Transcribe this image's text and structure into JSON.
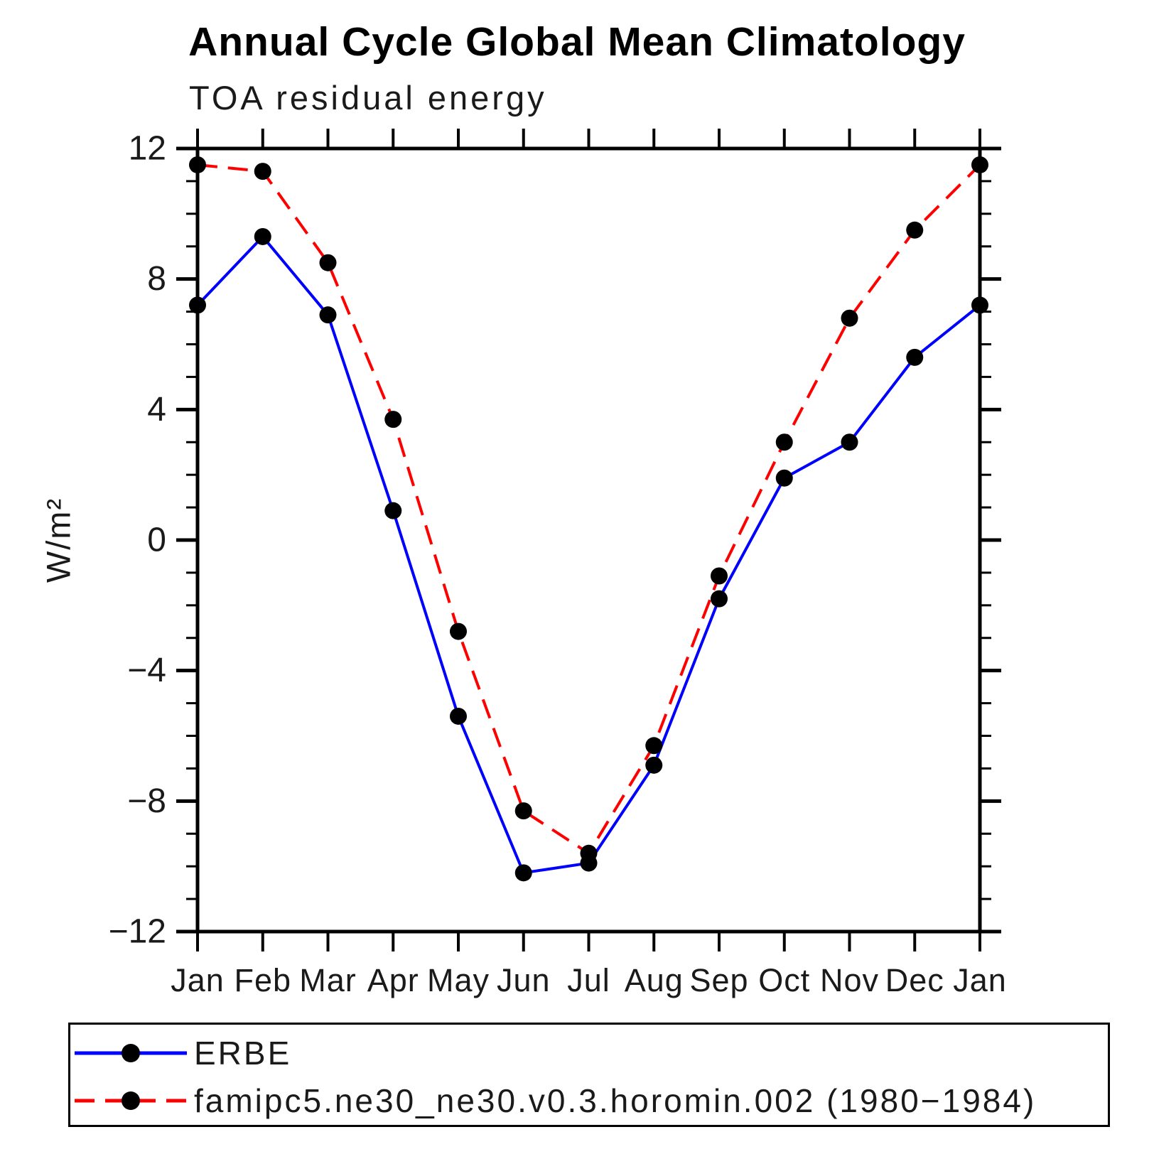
{
  "title": "Annual Cycle Global Mean Climatology",
  "subtitle": "TOA residual energy",
  "ylabel": "W/m²",
  "chart_data": {
    "type": "line",
    "categories": [
      "Jan",
      "Feb",
      "Mar",
      "Apr",
      "May",
      "Jun",
      "Jul",
      "Aug",
      "Sep",
      "Oct",
      "Nov",
      "Dec",
      "Jan"
    ],
    "series": [
      {
        "name": "ERBE",
        "color": "#0000ff",
        "line_style": "solid",
        "marker": "circle",
        "marker_color": "#000000",
        "values": [
          7.2,
          9.3,
          6.9,
          0.9,
          -5.4,
          -10.2,
          -9.9,
          -6.9,
          -1.8,
          1.9,
          3.0,
          5.6,
          7.2
        ]
      },
      {
        "name": "famipc5.ne30_ne30.v0.3.horomin.002 (1980−1984)",
        "color": "#ff0000",
        "line_style": "dashed",
        "marker": "circle",
        "marker_color": "#000000",
        "values": [
          11.5,
          11.3,
          8.5,
          3.7,
          -2.8,
          -8.3,
          -9.6,
          -6.3,
          -1.1,
          3.0,
          6.8,
          9.5,
          11.5
        ]
      }
    ],
    "xlabel": "",
    "ylabel": "W/m²",
    "ylim": [
      -12,
      12
    ],
    "y_major_ticks": [
      -12,
      -8,
      -4,
      0,
      4,
      8,
      12
    ],
    "y_minor_step": 1,
    "grid": "off",
    "legend_position": "bottom-box",
    "frame_color": "#000000"
  }
}
